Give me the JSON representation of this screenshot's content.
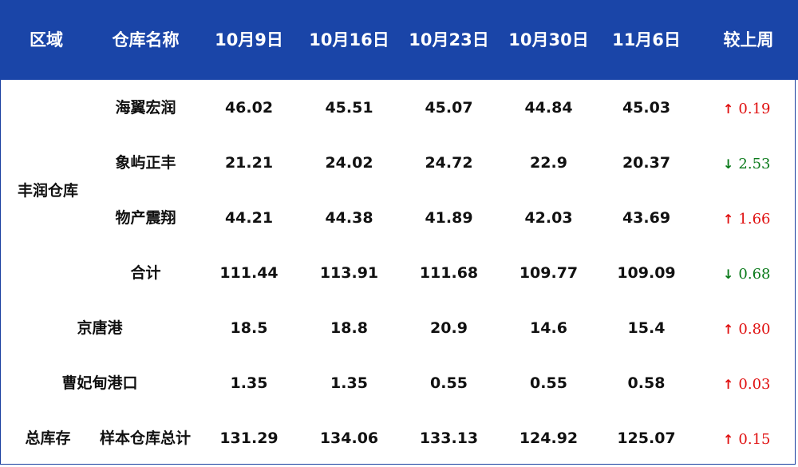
{
  "colors": {
    "header_bg": "#1a45a8",
    "up": "#e01010",
    "down": "#0a7a1a"
  },
  "header": [
    "区域",
    "仓库名称",
    "10月9日",
    "10月16日",
    "10月23日",
    "10月30日",
    "11月6日",
    "较上周"
  ],
  "region_fengrun": "丰润仓库",
  "region_total": "总库存",
  "rows": [
    {
      "name": "海翼宏润",
      "values": [
        "46.02",
        "45.51",
        "45.07",
        "44.84",
        "45.03"
      ],
      "dir": "up",
      "arrow": "up-arrow-icon",
      "change": "0.19"
    },
    {
      "name": "象屿正丰",
      "values": [
        "21.21",
        "24.02",
        "24.72",
        "22.9",
        "20.37"
      ],
      "dir": "down",
      "arrow": "down-arrow-icon",
      "change": "2.53"
    },
    {
      "name": "物产震翔",
      "values": [
        "44.21",
        "44.38",
        "41.89",
        "42.03",
        "43.69"
      ],
      "dir": "up",
      "arrow": "up-arrow-icon",
      "change": "1.66"
    },
    {
      "name": "合计",
      "values": [
        "111.44",
        "113.91",
        "111.68",
        "109.77",
        "109.09"
      ],
      "dir": "down",
      "arrow": "down-arrow-icon",
      "change": "0.68"
    },
    {
      "name": "京唐港",
      "values": [
        "18.5",
        "18.8",
        "20.9",
        "14.6",
        "15.4"
      ],
      "dir": "up",
      "arrow": "up-arrow-icon",
      "change": "0.80"
    },
    {
      "name": "曹妃甸港口",
      "values": [
        "1.35",
        "1.35",
        "0.55",
        "0.55",
        "0.58"
      ],
      "dir": "up",
      "arrow": "up-arrow-icon",
      "change": "0.03"
    },
    {
      "name": "样本仓库总计",
      "values": [
        "131.29",
        "134.06",
        "133.13",
        "124.92",
        "125.07"
      ],
      "dir": "up",
      "arrow": "up-arrow-icon",
      "change": "0.15"
    }
  ]
}
